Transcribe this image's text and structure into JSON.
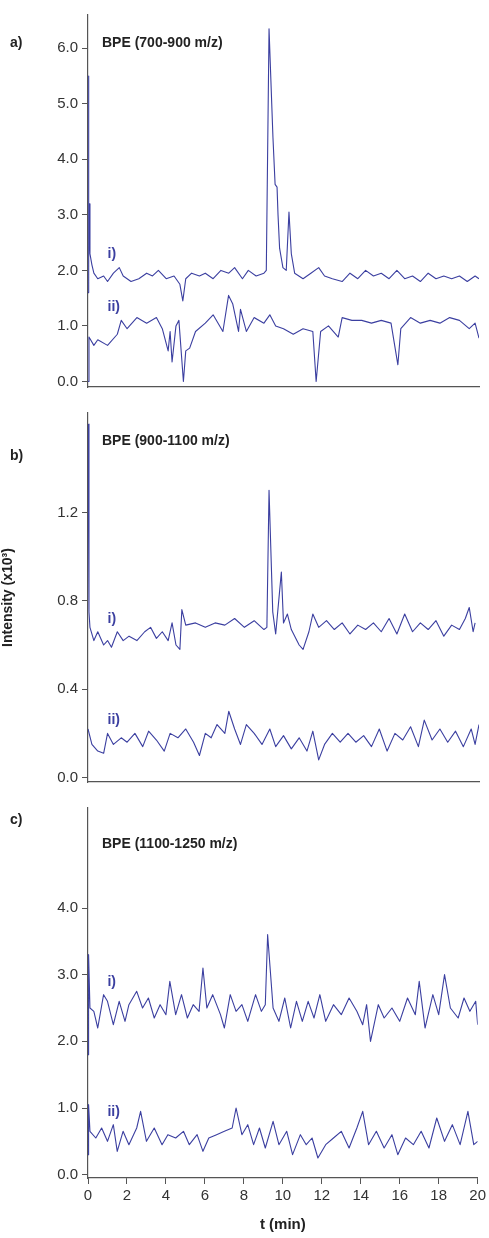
{
  "chart_data": [
    {
      "type": "line",
      "title": "BPE (700-900 m/z)",
      "annotations": [
        "a)"
      ],
      "xlim": [
        0,
        20
      ],
      "ylim": [
        -0.1,
        6.6
      ],
      "tick_labels": "y",
      "yticks": [
        {
          "value": 0,
          "label": "0.0"
        },
        {
          "value": 1,
          "label": "1.0"
        },
        {
          "value": 2,
          "label": "2.0"
        },
        {
          "value": 3,
          "label": "3.0"
        },
        {
          "value": 4,
          "label": "4.0"
        },
        {
          "value": 5,
          "label": "5.0"
        },
        {
          "value": 6,
          "label": "6.0"
        }
      ],
      "series": [
        {
          "name": "i)",
          "color": "#3b3fa0",
          "x": [
            0,
            0.02,
            0.05,
            0.07,
            0.1,
            0.2,
            0.3,
            0.5,
            0.8,
            1.0,
            1.3,
            1.6,
            1.8,
            2.2,
            2.6,
            3.0,
            3.3,
            3.6,
            4.0,
            4.4,
            4.7,
            4.85,
            5.0,
            5.3,
            5.7,
            6.0,
            6.4,
            6.8,
            7.2,
            7.5,
            7.9,
            8.2,
            8.6,
            9.0,
            9.12,
            9.26,
            9.46,
            9.57,
            9.67,
            9.72,
            9.8,
            9.97,
            10.14,
            10.28,
            10.4,
            10.57,
            11.0,
            11.4,
            11.8,
            12.1,
            12.5,
            13.0,
            13.4,
            13.8,
            14.2,
            14.6,
            15.0,
            15.4,
            15.8,
            16.2,
            16.6,
            17.0,
            17.4,
            17.8,
            18.2,
            18.6,
            19.0,
            19.4,
            19.8,
            20
          ],
          "values": [
            1.6,
            5.5,
            2.2,
            3.2,
            2.3,
            2.1,
            1.95,
            1.85,
            1.9,
            1.8,
            1.95,
            2.05,
            1.9,
            1.8,
            1.85,
            1.95,
            1.9,
            2.0,
            1.85,
            1.9,
            1.75,
            1.45,
            1.85,
            1.95,
            1.9,
            1.95,
            1.85,
            2.0,
            1.95,
            2.05,
            1.85,
            2.0,
            1.9,
            1.95,
            2.0,
            6.35,
            4.4,
            3.55,
            3.5,
            3.0,
            2.4,
            2.05,
            2.0,
            3.05,
            2.3,
            1.95,
            1.85,
            1.95,
            2.05,
            1.9,
            1.85,
            1.8,
            1.95,
            1.85,
            2.0,
            1.9,
            1.95,
            1.85,
            2.0,
            1.85,
            1.9,
            1.8,
            1.95,
            1.85,
            1.9,
            1.85,
            1.9,
            1.8,
            1.9,
            1.85
          ]
        },
        {
          "name": "ii)",
          "color": "#3b3fa0",
          "x": [
            0,
            0.05,
            0.3,
            0.5,
            1.0,
            1.5,
            1.7,
            2.0,
            2.5,
            3.0,
            3.5,
            3.8,
            4.1,
            4.2,
            4.3,
            4.5,
            4.65,
            4.88,
            5.0,
            5.2,
            5.5,
            6.0,
            6.4,
            6.9,
            7.19,
            7.4,
            7.7,
            7.8,
            8.1,
            8.5,
            9.0,
            9.3,
            9.6,
            10.0,
            10.5,
            11.0,
            11.5,
            11.67,
            11.9,
            12.3,
            12.8,
            13.0,
            13.5,
            14.0,
            14.5,
            15.0,
            15.5,
            15.85,
            16.0,
            16.5,
            17.0,
            17.5,
            18.0,
            18.5,
            19.0,
            19.5,
            19.8,
            20
          ],
          "values": [
            0.0,
            0.8,
            0.65,
            0.75,
            0.65,
            0.85,
            1.1,
            0.95,
            1.15,
            1.05,
            1.15,
            0.95,
            0.55,
            0.9,
            0.35,
            1.0,
            1.1,
            0.0,
            0.55,
            0.6,
            0.9,
            1.05,
            1.2,
            0.9,
            1.55,
            1.4,
            0.9,
            1.3,
            0.9,
            1.15,
            1.05,
            1.2,
            1.0,
            0.95,
            0.85,
            0.95,
            0.9,
            0.0,
            0.9,
            1.0,
            0.8,
            1.15,
            1.1,
            1.1,
            1.05,
            1.1,
            1.05,
            0.3,
            0.95,
            1.15,
            1.05,
            1.1,
            1.05,
            1.15,
            1.1,
            0.95,
            1.05,
            0.78
          ]
        }
      ]
    },
    {
      "type": "line",
      "title": "BPE (900-1100 m/z)",
      "annotations": [
        "b)"
      ],
      "ylabel": "Intensity (x10³)",
      "xlim": [
        0,
        20
      ],
      "ylim": [
        -0.02,
        1.65
      ],
      "tick_labels": "y",
      "yticks": [
        {
          "value": 0,
          "label": "0.0"
        },
        0.4,
        0.8,
        1.2
      ],
      "series": [
        {
          "name": "i)",
          "color": "#3b3fa0",
          "x": [
            0,
            0.05,
            0.1,
            0.3,
            0.5,
            0.8,
            1.0,
            1.2,
            1.5,
            1.8,
            2.1,
            2.5,
            2.9,
            3.2,
            3.5,
            3.8,
            4.1,
            4.3,
            4.5,
            4.7,
            4.8,
            5.0,
            5.5,
            6.0,
            6.5,
            7.0,
            7.5,
            8.0,
            8.5,
            9.0,
            9.15,
            9.26,
            9.45,
            9.6,
            9.89,
            10.0,
            10.2,
            10.4,
            10.8,
            11.0,
            11.3,
            11.5,
            11.8,
            12.2,
            12.6,
            13.0,
            13.4,
            13.8,
            14.2,
            14.6,
            15.0,
            15.4,
            15.8,
            16.2,
            16.6,
            17.0,
            17.4,
            17.8,
            18.2,
            18.6,
            19.0,
            19.3,
            19.5,
            19.7,
            19.8
          ],
          "values": [
            1.6,
            0.75,
            0.68,
            0.62,
            0.66,
            0.6,
            0.62,
            0.59,
            0.66,
            0.62,
            0.64,
            0.62,
            0.66,
            0.68,
            0.63,
            0.66,
            0.62,
            0.7,
            0.6,
            0.58,
            0.76,
            0.69,
            0.7,
            0.68,
            0.7,
            0.69,
            0.72,
            0.68,
            0.71,
            0.67,
            0.68,
            1.3,
            0.75,
            0.65,
            0.93,
            0.7,
            0.74,
            0.67,
            0.6,
            0.58,
            0.66,
            0.74,
            0.68,
            0.71,
            0.67,
            0.7,
            0.65,
            0.69,
            0.67,
            0.7,
            0.66,
            0.72,
            0.65,
            0.74,
            0.66,
            0.7,
            0.67,
            0.71,
            0.64,
            0.69,
            0.67,
            0.72,
            0.77,
            0.66,
            0.7
          ]
        },
        {
          "name": "ii)",
          "color": "#3b3fa0",
          "x": [
            0,
            0.2,
            0.5,
            0.8,
            1.0,
            1.3,
            1.7,
            2.0,
            2.4,
            2.8,
            3.1,
            3.5,
            3.9,
            4.2,
            4.6,
            5.0,
            5.4,
            5.7,
            6.0,
            6.3,
            6.6,
            7.0,
            7.2,
            7.5,
            7.8,
            8.1,
            8.5,
            8.9,
            9.3,
            9.6,
            10.0,
            10.4,
            10.8,
            11.2,
            11.5,
            11.8,
            12.1,
            12.5,
            12.9,
            13.3,
            13.7,
            14.1,
            14.5,
            14.9,
            15.3,
            15.7,
            16.1,
            16.5,
            16.9,
            17.2,
            17.6,
            18.0,
            18.4,
            18.8,
            19.2,
            19.6,
            19.8,
            20
          ],
          "values": [
            0.22,
            0.15,
            0.12,
            0.11,
            0.2,
            0.15,
            0.18,
            0.16,
            0.2,
            0.14,
            0.21,
            0.17,
            0.12,
            0.2,
            0.18,
            0.22,
            0.16,
            0.1,
            0.2,
            0.18,
            0.24,
            0.2,
            0.3,
            0.22,
            0.15,
            0.24,
            0.2,
            0.15,
            0.22,
            0.14,
            0.19,
            0.13,
            0.18,
            0.12,
            0.21,
            0.08,
            0.15,
            0.2,
            0.16,
            0.2,
            0.16,
            0.19,
            0.14,
            0.22,
            0.12,
            0.2,
            0.17,
            0.23,
            0.14,
            0.26,
            0.17,
            0.22,
            0.16,
            0.21,
            0.14,
            0.22,
            0.15,
            0.24
          ]
        }
      ]
    },
    {
      "type": "line",
      "title": "BPE (1100-1250 m/z)",
      "annotations": [
        "c)"
      ],
      "xlabel": "t (min)",
      "xlim": [
        0,
        20
      ],
      "ylim": [
        -0.05,
        5.5
      ],
      "xticks": [
        0,
        2,
        4,
        6,
        8,
        10,
        12,
        14,
        16,
        18,
        20
      ],
      "yticks": [
        {
          "value": 0,
          "label": "0.0"
        },
        {
          "value": 1,
          "label": "1.0"
        },
        {
          "value": 2,
          "label": "2.0"
        },
        {
          "value": 3,
          "label": "3.0"
        },
        {
          "value": 4,
          "label": "4.0"
        }
      ],
      "series": [
        {
          "name": "i)",
          "color": "#3b3fa0",
          "x": [
            0,
            0.03,
            0.1,
            0.3,
            0.5,
            0.8,
            1.0,
            1.3,
            1.6,
            1.9,
            2.1,
            2.5,
            2.8,
            3.1,
            3.4,
            3.7,
            4.0,
            4.2,
            4.5,
            4.8,
            5.1,
            5.4,
            5.7,
            5.9,
            6.1,
            6.4,
            6.8,
            7.0,
            7.3,
            7.6,
            7.9,
            8.2,
            8.6,
            8.9,
            9.1,
            9.22,
            9.5,
            9.8,
            10.1,
            10.4,
            10.7,
            11.0,
            11.3,
            11.6,
            11.9,
            12.2,
            12.6,
            13.0,
            13.4,
            13.8,
            14.1,
            14.3,
            14.5,
            14.9,
            15.2,
            15.6,
            16.0,
            16.4,
            16.8,
            17.0,
            17.3,
            17.7,
            18.0,
            18.3,
            18.6,
            19.0,
            19.3,
            19.6,
            19.9,
            20
          ],
          "values": [
            1.8,
            3.3,
            2.5,
            2.45,
            2.2,
            2.7,
            2.6,
            2.25,
            2.6,
            2.3,
            2.55,
            2.75,
            2.5,
            2.65,
            2.35,
            2.55,
            2.4,
            2.9,
            2.4,
            2.7,
            2.35,
            2.55,
            2.45,
            3.1,
            2.5,
            2.7,
            2.4,
            2.2,
            2.7,
            2.45,
            2.55,
            2.3,
            2.7,
            2.45,
            2.55,
            3.6,
            2.5,
            2.3,
            2.65,
            2.2,
            2.6,
            2.3,
            2.6,
            2.35,
            2.7,
            2.3,
            2.55,
            2.4,
            2.65,
            2.45,
            2.25,
            2.55,
            2.0,
            2.55,
            2.35,
            2.5,
            2.3,
            2.65,
            2.4,
            2.9,
            2.2,
            2.7,
            2.4,
            3.0,
            2.5,
            2.35,
            2.65,
            2.45,
            2.6,
            2.25
          ]
        },
        {
          "name": "ii)",
          "color": "#3b3fa0",
          "x": [
            0,
            0.03,
            0.1,
            0.4,
            0.7,
            1.0,
            1.3,
            1.5,
            1.8,
            2.1,
            2.5,
            2.7,
            3.0,
            3.4,
            3.8,
            4.1,
            4.5,
            4.9,
            5.2,
            5.6,
            5.9,
            6.2,
            6.6,
            7.0,
            7.4,
            7.6,
            7.9,
            8.2,
            8.5,
            8.8,
            9.1,
            9.5,
            9.8,
            10.2,
            10.5,
            10.9,
            11.2,
            11.5,
            11.8,
            12.2,
            12.6,
            13.0,
            13.4,
            13.8,
            14.1,
            14.4,
            14.8,
            15.2,
            15.6,
            15.9,
            16.3,
            16.7,
            17.1,
            17.5,
            17.9,
            18.3,
            18.7,
            19.1,
            19.5,
            19.8,
            20
          ],
          "values": [
            0.3,
            1.05,
            0.65,
            0.55,
            0.7,
            0.5,
            0.75,
            0.35,
            0.65,
            0.45,
            0.7,
            0.95,
            0.5,
            0.7,
            0.45,
            0.6,
            0.55,
            0.65,
            0.45,
            0.6,
            0.35,
            0.55,
            0.6,
            0.65,
            0.7,
            1.0,
            0.6,
            0.75,
            0.45,
            0.7,
            0.4,
            0.8,
            0.45,
            0.65,
            0.3,
            0.6,
            0.45,
            0.55,
            0.25,
            0.45,
            0.55,
            0.65,
            0.4,
            0.7,
            0.95,
            0.45,
            0.65,
            0.4,
            0.6,
            0.3,
            0.55,
            0.45,
            0.65,
            0.4,
            0.85,
            0.5,
            0.75,
            0.45,
            0.95,
            0.45,
            0.5
          ]
        }
      ]
    }
  ]
}
